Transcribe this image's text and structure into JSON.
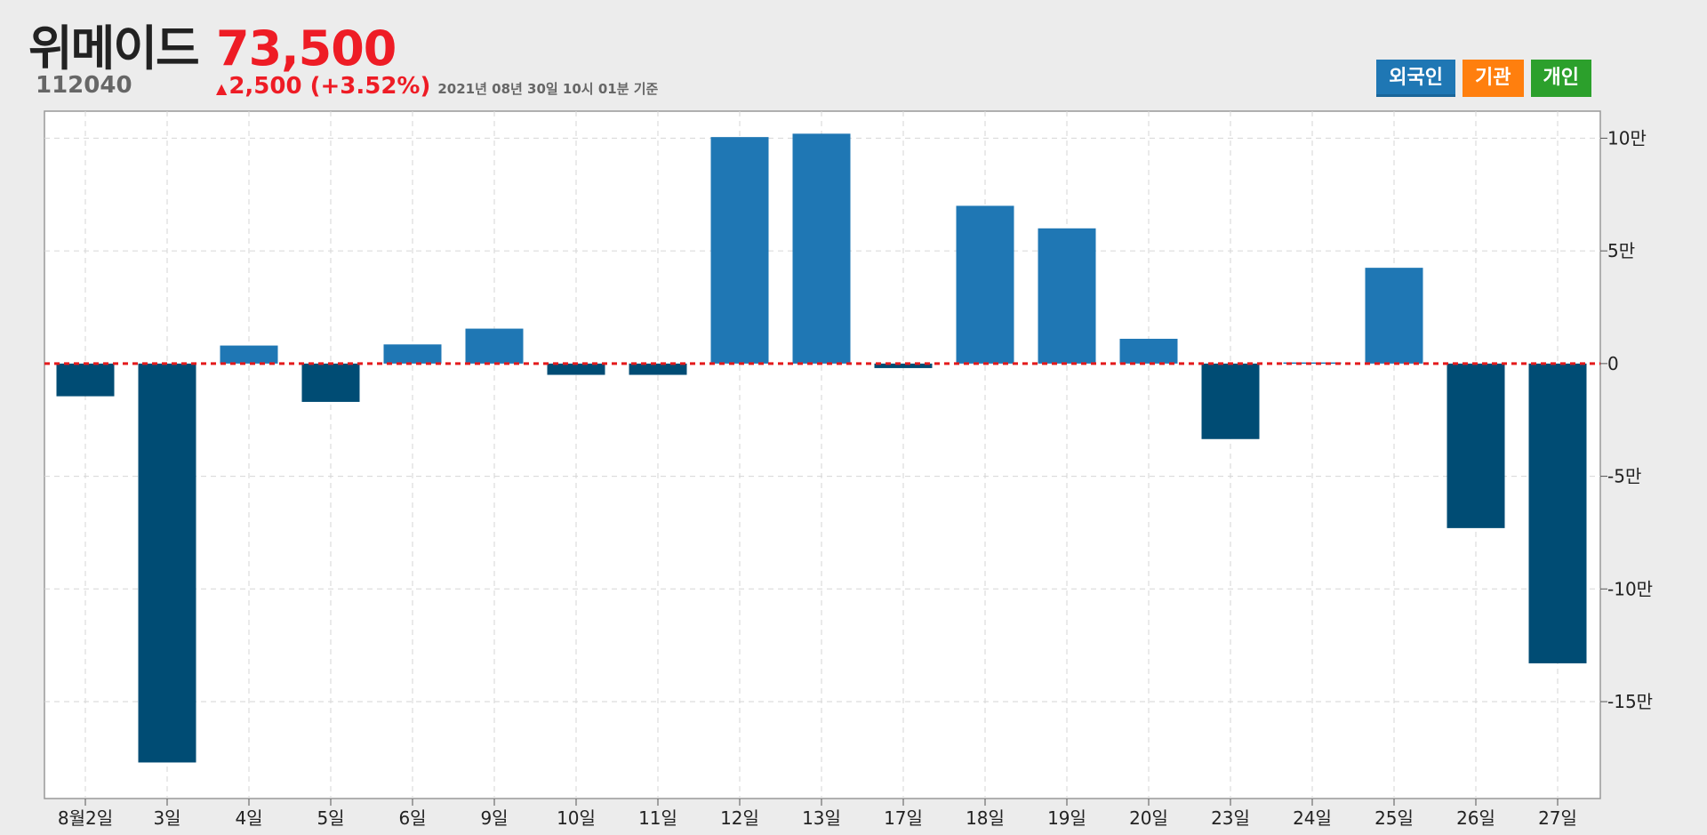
{
  "stock": {
    "name": "위메이드",
    "code": "112040",
    "price": "73,500",
    "change": "2,500 (+3.52%)",
    "timestamp": "2021년 08년 30일 10시 01분 기준"
  },
  "buttons": [
    {
      "label": "외국인",
      "color": "#1f77b4"
    },
    {
      "label": "기관",
      "color": "#ff7f0e"
    },
    {
      "label": "개인",
      "color": "#2ca02c"
    }
  ],
  "colors": {
    "positive": "#1f77b4",
    "negative": "#004c74",
    "zero_line": "#e31a1c",
    "up": "#ee1c25"
  },
  "chart_data": {
    "type": "bar",
    "series": [
      {
        "values": [
          -14500,
          -177000,
          8000,
          -17000,
          8500,
          15500,
          -5000,
          -5000,
          100500,
          102000,
          -2000,
          70000,
          60000,
          11000,
          -33500,
          500,
          42500,
          -73000,
          -133000
        ]
      }
    ],
    "categories": [
      "8월2일",
      "3일",
      "4일",
      "5일",
      "6일",
      "9일",
      "10일",
      "11일",
      "12일",
      "13일",
      "17일",
      "18일",
      "19일",
      "20일",
      "23일",
      "24일",
      "25일",
      "26일",
      "27일"
    ],
    "yticks": [
      {
        "value": 100000,
        "label": "10만"
      },
      {
        "value": 50000,
        "label": "5만"
      },
      {
        "value": 0,
        "label": "0"
      },
      {
        "value": -50000,
        "label": "-5만"
      },
      {
        "value": -100000,
        "label": "-10만"
      },
      {
        "value": -150000,
        "label": "-15만"
      }
    ],
    "ylim": [
      -193000,
      112000
    ],
    "grid": true,
    "zero_line": true
  }
}
